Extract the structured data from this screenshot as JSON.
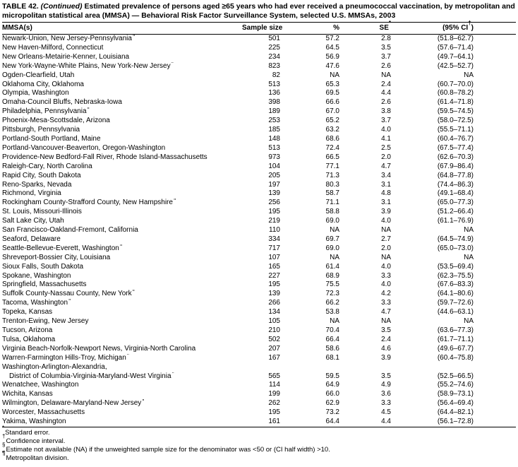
{
  "table": {
    "title_prefix": "TABLE 42. ",
    "title_continued": "(Continued) ",
    "title_rest": "Estimated prevalence of persons aged ≥65 years who had ever received a pneumococcal vaccination, by metropolitan and micropolitan statistical area (MMSA) — Behavioral Risk Factor Surveillance System, selected U.S. MMSAs, 2003",
    "columns": [
      {
        "pre": "MMSA(s)",
        "cls": "c-mmsa"
      },
      {
        "pre": "Sample size",
        "cls": "c-num c-sample"
      },
      {
        "pre": "%",
        "cls": "c-num c-pct"
      },
      {
        "pre": "SE",
        "sup": "*",
        "cls": "c-num c-se"
      },
      {
        "pre": "(95% CI",
        "sup": "†",
        "post": ")",
        "cls": "c-ci"
      }
    ],
    "rows": [
      {
        "mmsa": "Newark-Union, New Jersey-Pennsylvania",
        "sup": "¶",
        "sample": "501",
        "pct": "57.2",
        "se": "2.8",
        "ci": "(51.8–62.7)"
      },
      {
        "mmsa": "New Haven-Milford, Connecticut",
        "sample": "225",
        "pct": "64.5",
        "se": "3.5",
        "ci": "(57.6–71.4)"
      },
      {
        "mmsa": "New Orleans-Metairie-Kenner, Louisiana",
        "sample": "234",
        "pct": "56.9",
        "se": "3.7",
        "ci": "(49.7–64.1)"
      },
      {
        "mmsa": "New York-Wayne-White Plains, New York-New Jersey",
        "sup": "¶",
        "sample": "823",
        "pct": "47.6",
        "se": "2.6",
        "ci": "(42.5–52.7)"
      },
      {
        "mmsa": "Ogden-Clearfield, Utah",
        "sample": "82",
        "pct": "NA",
        "se": "NA",
        "ci": "NA"
      },
      {
        "mmsa": "Oklahoma City, Oklahoma",
        "sample": "513",
        "pct": "65.3",
        "se": "2.4",
        "ci": "(60.7–70.0)"
      },
      {
        "mmsa": "Olympia, Washington",
        "sample": "136",
        "pct": "69.5",
        "se": "4.4",
        "ci": "(60.8–78.2)"
      },
      {
        "mmsa": "Omaha-Council Bluffs, Nebraska-Iowa",
        "sample": "398",
        "pct": "66.6",
        "se": "2.6",
        "ci": "(61.4–71.8)"
      },
      {
        "mmsa": "Philadelphia, Pennsylvania",
        "sup": "¶",
        "sample": "189",
        "pct": "67.0",
        "se": "3.8",
        "ci": "(59.5–74.5)"
      },
      {
        "mmsa": "Phoenix-Mesa-Scottsdale, Arizona",
        "sample": "253",
        "pct": "65.2",
        "se": "3.7",
        "ci": "(58.0–72.5)"
      },
      {
        "mmsa": "Pittsburgh, Pennsylvania",
        "sample": "185",
        "pct": "63.2",
        "se": "4.0",
        "ci": "(55.5–71.1)"
      },
      {
        "mmsa": "Portland-South Portland, Maine",
        "sample": "148",
        "pct": "68.6",
        "se": "4.1",
        "ci": "(60.4–76.7)"
      },
      {
        "mmsa": "Portland-Vancouver-Beaverton, Oregon-Washington",
        "sample": "513",
        "pct": "72.4",
        "se": "2.5",
        "ci": "(67.5–77.4)"
      },
      {
        "mmsa": "Providence-New Bedford-Fall River, Rhode Island-Massachusetts",
        "sample": "973",
        "pct": "66.5",
        "se": "2.0",
        "ci": "(62.6–70.3)"
      },
      {
        "mmsa": "Raleigh-Cary, North Carolina",
        "sample": "104",
        "pct": "77.1",
        "se": "4.7",
        "ci": "(67.9–86.4)"
      },
      {
        "mmsa": "Rapid City, South Dakota",
        "sample": "205",
        "pct": "71.3",
        "se": "3.4",
        "ci": "(64.8–77.8)"
      },
      {
        "mmsa": "Reno-Sparks, Nevada",
        "sample": "197",
        "pct": "80.3",
        "se": "3.1",
        "ci": "(74.4–86.3)"
      },
      {
        "mmsa": "Richmond, Virginia",
        "sample": "139",
        "pct": "58.7",
        "se": "4.8",
        "ci": "(49.1–68.4)"
      },
      {
        "mmsa": "Rockingham County-Strafford County, New Hampshire",
        "sup": "¶",
        "sample": "256",
        "pct": "71.1",
        "se": "3.1",
        "ci": "(65.0–77.3)"
      },
      {
        "mmsa": "St. Louis, Missouri-Illinois",
        "sample": "195",
        "pct": "58.8",
        "se": "3.9",
        "ci": "(51.2–66.4)"
      },
      {
        "mmsa": "Salt Lake City, Utah",
        "sample": "219",
        "pct": "69.0",
        "se": "4.0",
        "ci": "(61.1–76.9)"
      },
      {
        "mmsa": "San Francisco-Oakland-Fremont, California",
        "sample": "110",
        "pct": "NA",
        "se": "NA",
        "ci": "NA"
      },
      {
        "mmsa": "Seaford, Delaware",
        "sample": "334",
        "pct": "69.7",
        "se": "2.7",
        "ci": "(64.5–74.9)"
      },
      {
        "mmsa": "Seattle-Bellevue-Everett, Washington",
        "sup": "¶",
        "sample": "717",
        "pct": "69.0",
        "se": "2.0",
        "ci": "(65.0–73.0)"
      },
      {
        "mmsa": "Shreveport-Bossier City, Louisiana",
        "sample": "107",
        "pct": "NA",
        "se": "NA",
        "ci": "NA"
      },
      {
        "mmsa": "Sioux Falls, South Dakota",
        "sample": "165",
        "pct": "61.4",
        "se": "4.0",
        "ci": "(53.5–69.4)"
      },
      {
        "mmsa": "Spokane, Washington",
        "sample": "227",
        "pct": "68.9",
        "se": "3.3",
        "ci": "(62.3–75.5)"
      },
      {
        "mmsa": "Springfield, Massachusetts",
        "sample": "195",
        "pct": "75.5",
        "se": "4.0",
        "ci": "(67.6–83.3)"
      },
      {
        "mmsa": "Suffolk County-Nassau County, New York",
        "sup": "¶",
        "sample": "139",
        "pct": "72.3",
        "se": "4.2",
        "ci": "(64.1–80.6)"
      },
      {
        "mmsa": "Tacoma, Washington",
        "sup": "¶",
        "sample": "266",
        "pct": "66.2",
        "se": "3.3",
        "ci": "(59.7–72.6)"
      },
      {
        "mmsa": "Topeka, Kansas",
        "sample": "134",
        "pct": "53.8",
        "se": "4.7",
        "ci": "(44.6–63.1)"
      },
      {
        "mmsa": "Trenton-Ewing, New Jersey",
        "sample": "105",
        "pct": "NA",
        "se": "NA",
        "ci": "NA"
      },
      {
        "mmsa": "Tucson, Arizona",
        "sample": "210",
        "pct": "70.4",
        "se": "3.5",
        "ci": "(63.6–77.3)"
      },
      {
        "mmsa": "Tulsa, Oklahoma",
        "sample": "502",
        "pct": "66.4",
        "se": "2.4",
        "ci": "(61.7–71.1)"
      },
      {
        "mmsa": "Virginia Beach-Norfolk-Newport News, Virginia-North Carolina",
        "sample": "207",
        "pct": "58.6",
        "se": "4.6",
        "ci": "(49.6–67.7)"
      },
      {
        "mmsa": "Warren-Farmington Hills-Troy, Michigan",
        "sup": "¶",
        "sample": "167",
        "pct": "68.1",
        "se": "3.9",
        "ci": "(60.4–75.8)"
      },
      {
        "mmsa": "Washington-Arlington-Alexandria,",
        "sample": "",
        "pct": "",
        "se": "",
        "ci": ""
      },
      {
        "mmsa": "District of Columbia-Virginia-Maryland-West Virginia",
        "sup": "¶",
        "indent": true,
        "sample": "565",
        "pct": "59.5",
        "se": "3.5",
        "ci": "(52.5–66.5)"
      },
      {
        "mmsa": "Wenatchee, Washington",
        "sample": "114",
        "pct": "64.9",
        "se": "4.9",
        "ci": "(55.2–74.6)"
      },
      {
        "mmsa": "Wichita, Kansas",
        "sample": "199",
        "pct": "66.0",
        "se": "3.6",
        "ci": "(58.9–73.1)"
      },
      {
        "mmsa": "Wilmington, Delaware-Maryland-New Jersey",
        "sup": "¶",
        "sample": "262",
        "pct": "62.9",
        "se": "3.3",
        "ci": "(56.4–69.4)"
      },
      {
        "mmsa": "Worcester, Massachusetts",
        "sample": "195",
        "pct": "73.2",
        "se": "4.5",
        "ci": "(64.4–82.1)"
      },
      {
        "mmsa": "Yakima, Washington",
        "sample": "161",
        "pct": "64.4",
        "se": "4.4",
        "ci": "(56.1–72.8)"
      }
    ],
    "footnotes": [
      {
        "marker": "*",
        "text": "Standard error."
      },
      {
        "marker": "†",
        "text": "Confidence interval."
      },
      {
        "marker": "§",
        "text": "Estimate not available (NA) if the unweighted sample size for the denominator was <50 or (CI half width) >10."
      },
      {
        "marker": "¶",
        "text": "Metropolitan division.",
        "bold": true
      }
    ]
  }
}
